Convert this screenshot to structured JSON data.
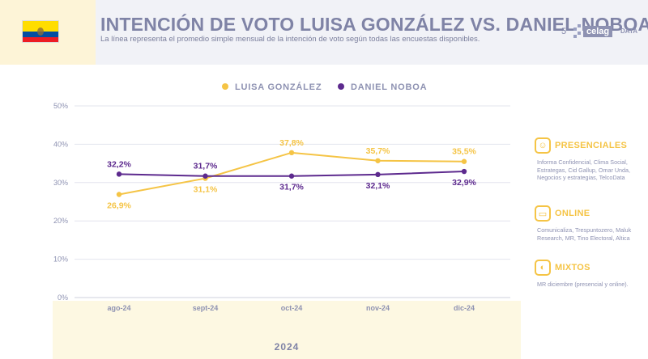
{
  "header": {
    "title": "INTENCIÓN DE VOTO LUISA GONZÁLEZ VS. DANIEL NOBOA",
    "subtitle": "La línea representa el promedio simple mensual de la intención de voto según todas las encuestas disponibles.",
    "page_number": "5",
    "logo_text": "celag",
    "logo_suffix": "DATA"
  },
  "colors": {
    "gonzalez": "#f5c445",
    "noboa": "#5d2a8e",
    "axis_text": "#8e92b2",
    "grid": "#e3e4ee"
  },
  "chart_data": {
    "type": "line",
    "categories": [
      "ago-24",
      "sept-24",
      "oct-24",
      "nov-24",
      "dic-24"
    ],
    "series": [
      {
        "name": "LUISA GONZÁLEZ",
        "values": [
          26.9,
          31.1,
          37.8,
          35.7,
          35.5
        ],
        "labels": [
          "26,9%",
          "31,1%",
          "37,8%",
          "35,7%",
          "35,5%"
        ],
        "color": "#f5c445"
      },
      {
        "name": "DANIEL NOBOA",
        "values": [
          32.2,
          31.7,
          31.7,
          32.1,
          32.9
        ],
        "labels": [
          "32,2%",
          "31,7%",
          "31,7%",
          "32,1%",
          "32,9%"
        ],
        "color": "#5d2a8e"
      }
    ],
    "y_ticks": [
      "0%",
      "10%",
      "20%",
      "30%",
      "40%",
      "50%"
    ],
    "ylim": [
      0,
      50
    ],
    "xlabel": "2024",
    "legend_position": "top-center",
    "grid": true
  },
  "sidebar": [
    {
      "icon": "people-icon",
      "title": "PRESENCIALES",
      "text": "Informa Confidencial, Clima Social, Estrategas, Cid Gallup, Omar Unda, Negocios y estrategias, TelcoData"
    },
    {
      "icon": "monitor-icon",
      "title": "ONLINE",
      "text": "Comunicaliza, Trespuntozero, Maluk Research, MR, Tino Electoral, Altica"
    },
    {
      "icon": "mixed-icon",
      "title": "MIXTOS",
      "text": "MR diciembre (presencial y online)."
    }
  ]
}
